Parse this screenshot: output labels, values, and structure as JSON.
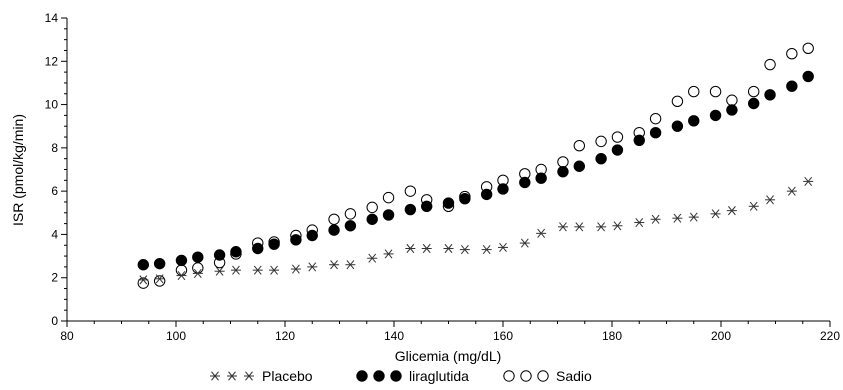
{
  "chart_data": {
    "type": "scatter",
    "xlabel": "Glicemia (mg/dL)",
    "ylabel": "ISR (pmol/kg/min)",
    "xlim": [
      80,
      220
    ],
    "ylim": [
      0,
      14
    ],
    "x_ticks": [
      80,
      100,
      120,
      140,
      160,
      180,
      200,
      220
    ],
    "y_ticks": [
      0,
      2,
      4,
      6,
      8,
      10,
      12,
      14
    ],
    "x_tick_labels": [
      "80",
      "100",
      "120",
      "140",
      "160",
      "180",
      "200",
      "220"
    ],
    "y_tick_labels": [
      "0",
      "2",
      "4",
      "6",
      "8",
      "10",
      "12",
      "14"
    ],
    "grid": false,
    "legend_position": "bottom",
    "series": [
      {
        "name": "Placebo",
        "marker": "asterisk",
        "color": "#333333",
        "x": [
          94,
          97,
          101,
          104,
          108,
          111,
          115,
          118,
          122,
          125,
          129,
          132,
          136,
          139,
          143,
          146,
          150,
          153,
          157,
          160,
          164,
          167,
          171,
          174,
          178,
          181,
          185,
          188,
          192,
          195,
          199,
          202,
          206,
          209,
          213,
          216
        ],
        "y": [
          1.9,
          1.95,
          2.1,
          2.2,
          2.3,
          2.35,
          2.35,
          2.35,
          2.4,
          2.5,
          2.6,
          2.6,
          2.9,
          3.1,
          3.35,
          3.35,
          3.35,
          3.3,
          3.3,
          3.4,
          3.6,
          4.05,
          4.35,
          4.35,
          4.35,
          4.4,
          4.55,
          4.7,
          4.75,
          4.8,
          4.95,
          5.1,
          5.3,
          5.6,
          6.0,
          6.45
        ]
      },
      {
        "name": "liraglutida",
        "marker": "filled-circle",
        "color": "#000000",
        "x": [
          94,
          97,
          101,
          104,
          108,
          111,
          115,
          118,
          122,
          125,
          129,
          132,
          136,
          139,
          143,
          146,
          150,
          153,
          157,
          160,
          164,
          167,
          171,
          174,
          178,
          181,
          185,
          188,
          192,
          195,
          199,
          202,
          206,
          209,
          213,
          216
        ],
        "y": [
          2.6,
          2.65,
          2.8,
          2.95,
          3.05,
          3.2,
          3.35,
          3.55,
          3.75,
          3.95,
          4.2,
          4.4,
          4.7,
          4.9,
          5.15,
          5.3,
          5.45,
          5.65,
          5.85,
          6.1,
          6.4,
          6.6,
          6.9,
          7.15,
          7.5,
          7.9,
          8.35,
          8.7,
          9.0,
          9.25,
          9.5,
          9.75,
          10.05,
          10.45,
          10.85,
          11.3
        ]
      },
      {
        "name": "Sadio",
        "marker": "open-circle",
        "color": "#000000",
        "x": [
          94,
          97,
          101,
          104,
          108,
          111,
          115,
          118,
          122,
          125,
          129,
          132,
          136,
          139,
          143,
          146,
          150,
          153,
          157,
          160,
          164,
          167,
          171,
          174,
          178,
          181,
          185,
          188,
          192,
          195,
          199,
          202,
          206,
          209,
          213,
          216
        ],
        "y": [
          1.75,
          1.85,
          2.35,
          2.45,
          2.7,
          3.1,
          3.6,
          3.65,
          3.95,
          4.2,
          4.7,
          4.95,
          5.25,
          5.7,
          6.0,
          5.6,
          5.3,
          5.75,
          6.2,
          6.5,
          6.8,
          7.0,
          7.35,
          8.1,
          8.3,
          8.5,
          8.7,
          9.35,
          10.15,
          10.6,
          10.6,
          10.2,
          10.6,
          11.85,
          12.35,
          12.6
        ]
      }
    ]
  }
}
